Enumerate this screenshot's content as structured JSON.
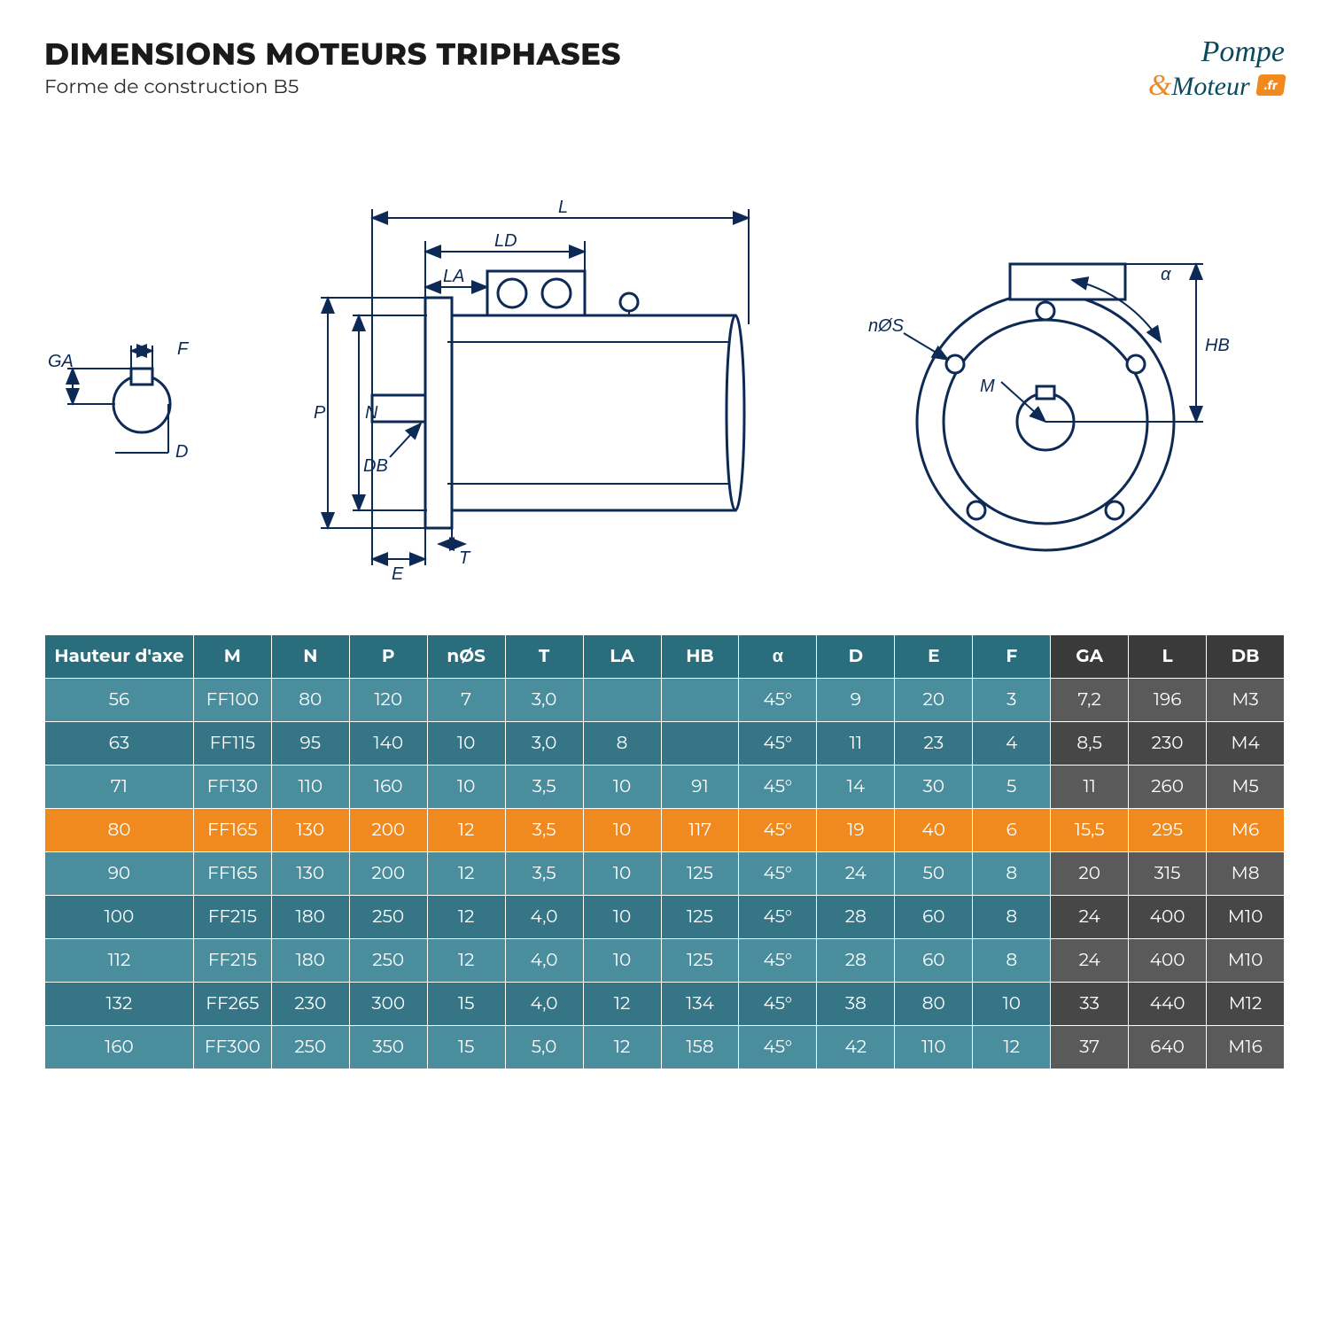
{
  "header": {
    "title": "DIMENSIONS MOTEURS TRIPHASES",
    "subtitle": "Forme de construction B5",
    "logo_line1": "Pompe",
    "logo_amp": "&",
    "logo_line2": "Moteur",
    "logo_badge": ".fr"
  },
  "diagram": {
    "labels": [
      "GA",
      "F",
      "D",
      "P",
      "N",
      "DB",
      "E",
      "T",
      "LA",
      "LD",
      "L",
      "HB",
      "M",
      "α",
      "nØS"
    ],
    "line_color": "#0c2a55",
    "label_color": "#0c2a55",
    "label_fontsize": 20
  },
  "table": {
    "columns": [
      "Hauteur d'axe",
      "M",
      "N",
      "P",
      "nØS",
      "T",
      "LA",
      "HB",
      "α",
      "D",
      "E",
      "F",
      "GA",
      "L",
      "DB"
    ],
    "column_groups": {
      "teal_header_cols": 12,
      "dark_header_cols": 3
    },
    "colors": {
      "header_teal": "#2a6d7d",
      "header_dark": "#3a3a3a",
      "row_teal_light": "#4a8d9d",
      "row_teal_dark": "#357585",
      "row_dark_light": "#5a5a5a",
      "row_dark_dark": "#474747",
      "highlight": "#f08a1f",
      "text": "#ffffff",
      "border": "#ffffff"
    },
    "highlight_row_index": 3,
    "rows": [
      [
        "56",
        "FF100",
        "80",
        "120",
        "7",
        "3,0",
        "",
        "",
        "45°",
        "9",
        "20",
        "3",
        "7,2",
        "196",
        "M3"
      ],
      [
        "63",
        "FF115",
        "95",
        "140",
        "10",
        "3,0",
        "8",
        "",
        "45°",
        "11",
        "23",
        "4",
        "8,5",
        "230",
        "M4"
      ],
      [
        "71",
        "FF130",
        "110",
        "160",
        "10",
        "3,5",
        "10",
        "91",
        "45°",
        "14",
        "30",
        "5",
        "11",
        "260",
        "M5"
      ],
      [
        "80",
        "FF165",
        "130",
        "200",
        "12",
        "3,5",
        "10",
        "117",
        "45°",
        "19",
        "40",
        "6",
        "15,5",
        "295",
        "M6"
      ],
      [
        "90",
        "FF165",
        "130",
        "200",
        "12",
        "3,5",
        "10",
        "125",
        "45°",
        "24",
        "50",
        "8",
        "20",
        "315",
        "M8"
      ],
      [
        "100",
        "FF215",
        "180",
        "250",
        "12",
        "4,0",
        "10",
        "125",
        "45°",
        "28",
        "60",
        "8",
        "24",
        "400",
        "M10"
      ],
      [
        "112",
        "FF215",
        "180",
        "250",
        "12",
        "4,0",
        "10",
        "125",
        "45°",
        "28",
        "60",
        "8",
        "24",
        "400",
        "M10"
      ],
      [
        "132",
        "FF265",
        "230",
        "300",
        "15",
        "4,0",
        "12",
        "134",
        "45°",
        "38",
        "80",
        "10",
        "33",
        "440",
        "M12"
      ],
      [
        "160",
        "FF300",
        "250",
        "350",
        "15",
        "5,0",
        "12",
        "158",
        "45°",
        "42",
        "110",
        "12",
        "37",
        "640",
        "M16"
      ]
    ]
  }
}
